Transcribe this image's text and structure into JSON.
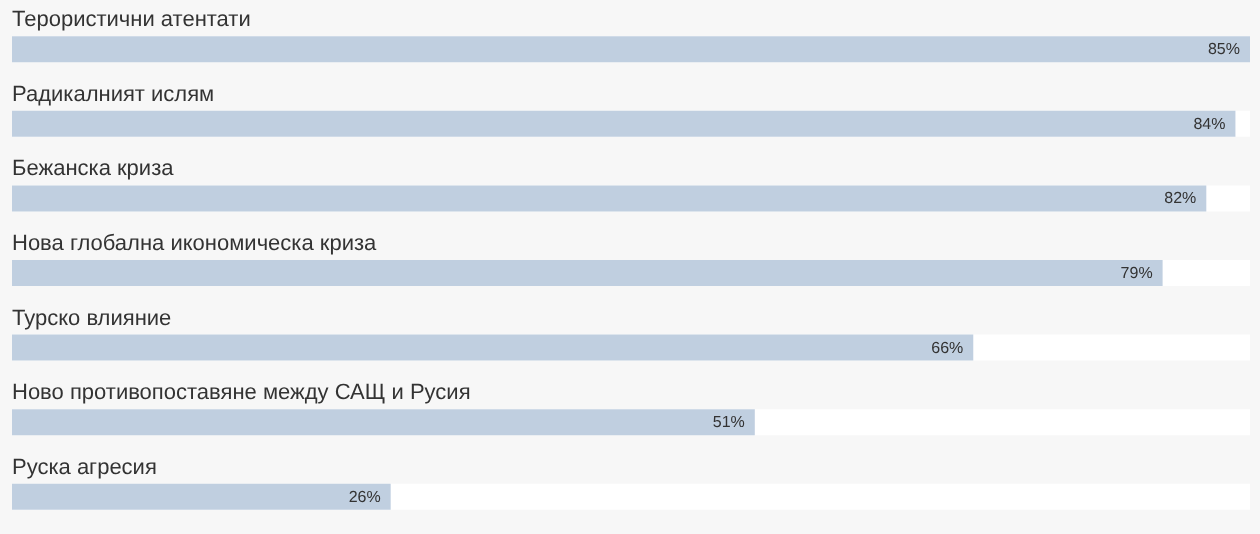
{
  "chart_data": {
    "type": "bar",
    "orientation": "horizontal",
    "categories": [
      "Терористични атентати",
      "Радикалният ислям",
      "Бежанска криза",
      "Нова глобална икономическа криза",
      "Турско влияние",
      "Ново противопоставяне между САЩ и Русия",
      "Руска агресия"
    ],
    "values": [
      85,
      84,
      82,
      79,
      66,
      51,
      26
    ],
    "value_labels": [
      "85%",
      "84%",
      "82%",
      "79%",
      "66%",
      "51%",
      "26%"
    ],
    "color": "#c0cfe0",
    "tick_labels": "y"
  }
}
